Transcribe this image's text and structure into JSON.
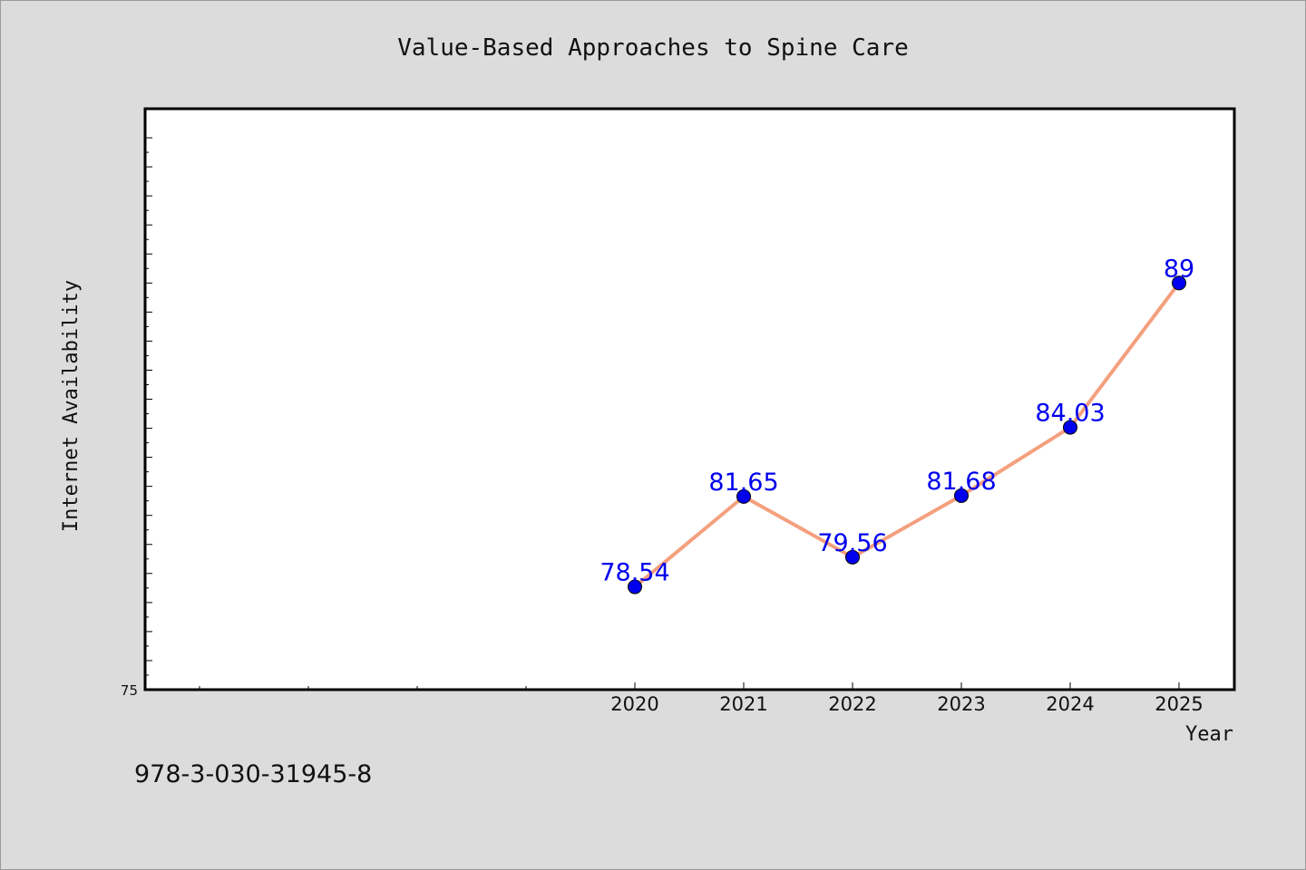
{
  "chart_data": {
    "type": "line",
    "title": "Value-Based Approaches to Spine Care",
    "xlabel": "Year",
    "ylabel": "Internet Availability",
    "categories": [
      "2020",
      "2021",
      "2022",
      "2023",
      "2024",
      "2025"
    ],
    "series": [
      {
        "values": [
          78.54,
          81.65,
          79.56,
          81.68,
          84.03,
          89
        ],
        "data_labels": [
          "78.54",
          "81.65",
          "79.56",
          "81.68",
          "84.03",
          "89"
        ],
        "line_color": "#f4a07e",
        "marker_color": "#0000ee"
      }
    ],
    "x_extra_minor_ticks": 4,
    "ylim": [
      75,
      95
    ],
    "y_tick_labels": [
      "75"
    ],
    "grid": false,
    "legend": "none",
    "label_color": "#0000ee"
  },
  "footer_text": "978-3-030-31945-8"
}
